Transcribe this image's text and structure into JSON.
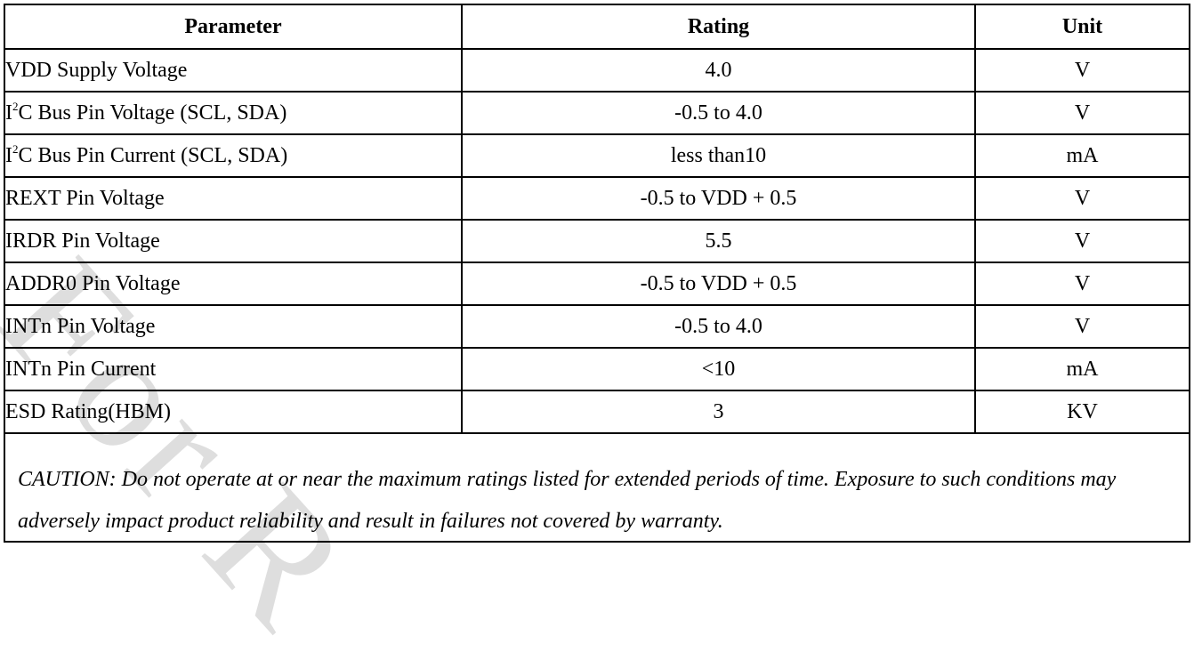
{
  "table": {
    "headers": {
      "parameter": "Parameter",
      "rating": "Rating",
      "unit": "Unit"
    },
    "rows": [
      {
        "parameter": "VDD Supply Voltage",
        "rating": "4.0",
        "unit": "V"
      },
      {
        "parameter_pre": "I",
        "parameter_sup": "2",
        "parameter_post": "C Bus Pin Voltage (SCL, SDA)",
        "rating": "-0.5 to 4.0",
        "unit": "V"
      },
      {
        "parameter_pre": "I",
        "parameter_sup": "2",
        "parameter_post": "C Bus Pin Current (SCL, SDA)",
        "rating": "less than10",
        "unit": "mA"
      },
      {
        "parameter": "REXT Pin Voltage",
        "rating": "-0.5 to VDD + 0.5",
        "unit": "V"
      },
      {
        "parameter": "IRDR Pin Voltage",
        "rating": "5.5",
        "unit": "V"
      },
      {
        "parameter": "ADDR0 Pin Voltage",
        "rating": "-0.5 to VDD + 0.5",
        "unit": "V"
      },
      {
        "parameter": "INTn Pin Voltage",
        "rating": "-0.5 to 4.0",
        "unit": "V"
      },
      {
        "parameter": "INTn Pin Current",
        "rating": "<10",
        "unit": "mA"
      },
      {
        "parameter": "ESD Rating(HBM)",
        "rating": "3",
        "unit": "KV"
      }
    ]
  },
  "caution": "CAUTION: Do not operate at or near the maximum ratings listed for extended periods of time. Exposure to such conditions may adversely impact product reliability and result in failures not covered by warranty.",
  "watermark": "For R"
}
